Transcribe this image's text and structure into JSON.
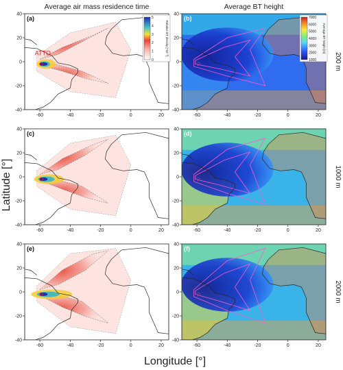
{
  "figure": {
    "col_titles": [
      "Average air mass residence time",
      "Average BT height"
    ],
    "ylabel": "Latitude [°]",
    "xlabel": "Longitude [°]",
    "row_labels": [
      "200 m",
      "1000 m",
      "2000 m"
    ],
    "panel_letters": [
      "(a)",
      "(b)",
      "(c)",
      "(d)",
      "(e)",
      "(f)"
    ],
    "site_label": "ATTO",
    "cb_density_label": "Relative BT density [*10⁻³]",
    "cb_height_label": "Average BT height [m]",
    "colors": {
      "site": "#e02020",
      "contour_b": "#ff5ad0",
      "ocean_b": "#1a2fb0"
    }
  },
  "chart_data": [
    {
      "panel": "(a)",
      "type": "heatmap",
      "title": "Average air mass residence time",
      "row": "200 m",
      "xlim": [
        -70,
        25
      ],
      "ylim": [
        -40,
        40
      ],
      "xticks": [
        "-60",
        "-40",
        "-20",
        "0",
        "20"
      ],
      "yticks": [
        "40",
        "20",
        "0",
        "-20",
        "-40"
      ],
      "colorbar": {
        "label": "Relative BT density [*10⁻³]",
        "ticks": [
          "0",
          "1",
          "2",
          "3",
          "4",
          "5"
        ]
      }
    },
    {
      "panel": "(b)",
      "type": "heatmap",
      "title": "Average BT height",
      "row": "200 m",
      "xlim": [
        -70,
        25
      ],
      "ylim": [
        -40,
        40
      ],
      "xticks": [
        "-60",
        "-40",
        "-20",
        "0",
        "20"
      ],
      "yticks": [
        "40",
        "20",
        "0",
        "-20",
        "-40"
      ],
      "colorbar": {
        "label": "Average BT height [m]",
        "ticks": [
          "7000",
          "6000",
          "5000",
          "4000",
          "3000",
          "2000",
          "1000"
        ]
      }
    },
    {
      "panel": "(c)",
      "type": "heatmap",
      "row": "1000 m",
      "xlim": [
        -70,
        25
      ],
      "ylim": [
        -40,
        40
      ],
      "xticks": [
        "-60",
        "-40",
        "-20",
        "0",
        "20"
      ],
      "yticks": [
        "40",
        "20",
        "0",
        "-20",
        "-40"
      ]
    },
    {
      "panel": "(d)",
      "type": "heatmap",
      "row": "1000 m",
      "xlim": [
        -70,
        25
      ],
      "ylim": [
        -40,
        40
      ],
      "xticks": [
        "-60",
        "-40",
        "-20",
        "0",
        "20"
      ],
      "yticks": [
        "40",
        "20",
        "0",
        "-20",
        "-40"
      ]
    },
    {
      "panel": "(e)",
      "type": "heatmap",
      "row": "2000 m",
      "xlim": [
        -70,
        25
      ],
      "ylim": [
        -40,
        40
      ],
      "xticks": [
        "-60",
        "-40",
        "-20",
        "0",
        "20"
      ],
      "yticks": [
        "40",
        "20",
        "0",
        "-20",
        "-40"
      ]
    },
    {
      "panel": "(f)",
      "type": "heatmap",
      "row": "2000 m",
      "xlim": [
        -70,
        25
      ],
      "ylim": [
        -40,
        40
      ],
      "xticks": [
        "-60",
        "-40",
        "-20",
        "0",
        "20"
      ],
      "yticks": [
        "40",
        "20",
        "0",
        "-20",
        "-40"
      ]
    }
  ]
}
